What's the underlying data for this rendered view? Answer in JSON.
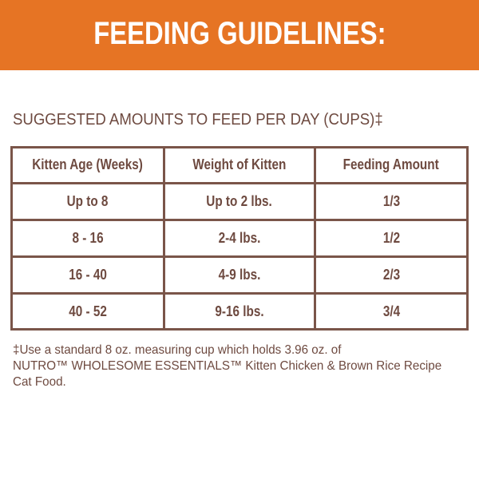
{
  "banner": {
    "title": "FEEDING GUIDELINES:",
    "background_color": "#e67424"
  },
  "subtitle": "SUGGESTED AMOUNTS TO FEED PER DAY (CUPS)‡",
  "table": {
    "headers": [
      "Kitten Age (Weeks)",
      "Weight of Kitten",
      "Feeding Amount"
    ],
    "rows": [
      [
        "Up to 8",
        "Up to 2 lbs.",
        "1/3"
      ],
      [
        "8 - 16",
        "2-4 lbs.",
        "1/2"
      ],
      [
        "16 - 40",
        "4-9 lbs.",
        "2/3"
      ],
      [
        "40 - 52",
        "9-16 lbs.",
        "3/4"
      ]
    ],
    "border_color": "#7a5549"
  },
  "footnote": {
    "lines": [
      "‡Use a standard 8 oz. measuring cup which holds 3.96 oz. of",
      "NUTRO™ WHOLESOME ESSENTIALS™ Kitten Chicken & Brown Rice Recipe",
      "Cat Food."
    ]
  }
}
